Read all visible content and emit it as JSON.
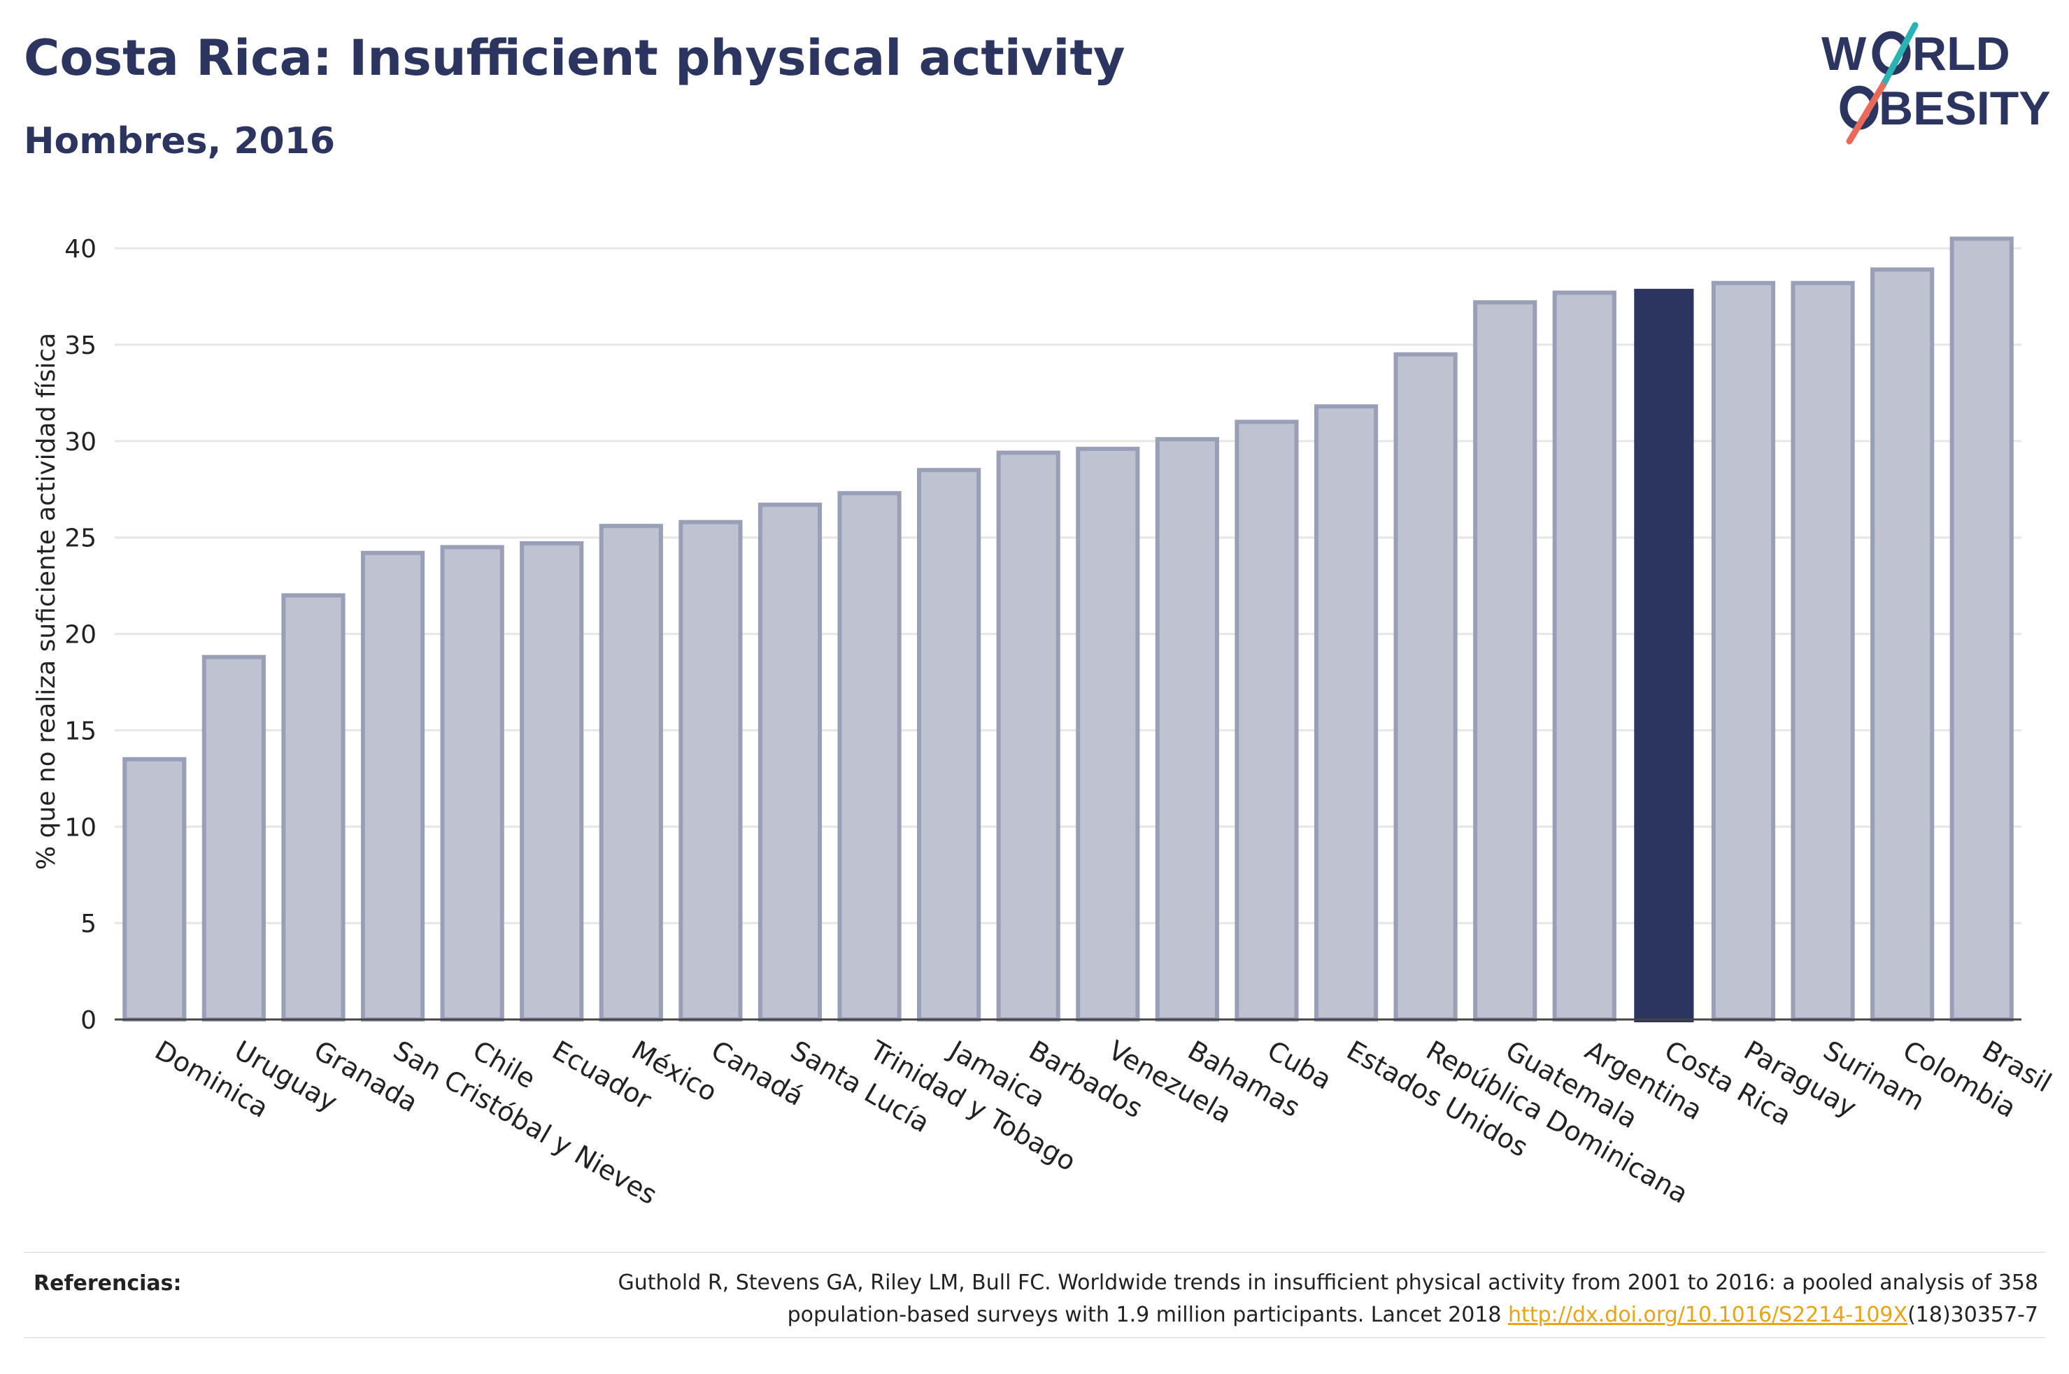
{
  "header": {
    "title": "Costa Rica: Insufficient physical activity",
    "subtitle": "Hombres, 2016"
  },
  "logo": {
    "line1": "W_RLD",
    "line2": "_BESITY",
    "slash_colors": [
      "#2ab3b3",
      "#e96a5a"
    ]
  },
  "chart_data": {
    "type": "bar",
    "title": "",
    "xlabel": "",
    "ylabel": "% que no realiza suficiente actividad física",
    "ylim": [
      0,
      42
    ],
    "yticks": [
      0,
      5,
      10,
      15,
      20,
      25,
      30,
      35,
      40
    ],
    "grid": true,
    "highlight": "Costa Rica",
    "colors": {
      "bar": "#bfc2d0",
      "bar_edge": "#9a9fb8",
      "highlight": "#2b3560",
      "grid": "#e6e6e6"
    },
    "categories": [
      "Dominica",
      "Uruguay",
      "Granada",
      "San Cristóbal y Nieves",
      "Chile",
      "Ecuador",
      "México",
      "Canadá",
      "Santa Lucía",
      "Trinidad y Tobago",
      "Jamaica",
      "Barbados",
      "Venezuela",
      "Bahamas",
      "Cuba",
      "Estados Unidos",
      "República Dominicana",
      "Guatemala",
      "Argentina",
      "Costa Rica",
      "Paraguay",
      "Surinam",
      "Colombia",
      "Brasil"
    ],
    "values": [
      13.5,
      18.8,
      22.0,
      24.2,
      24.5,
      24.7,
      25.6,
      25.8,
      26.7,
      27.3,
      28.5,
      29.4,
      29.6,
      30.1,
      31.0,
      31.8,
      34.5,
      37.2,
      37.7,
      37.9,
      38.2,
      38.2,
      38.9,
      40.5
    ]
  },
  "references": {
    "label": "Referencias:",
    "text_line1": "Guthold R, Stevens GA, Riley LM, Bull FC. Worldwide trends in insufficient physical activity from 2001 to 2016: a pooled analysis of 358",
    "text_line2_prefix": "population-based surveys with 1.9 million participants. Lancet 2018 ",
    "link": "http://dx.doi.org/10.1016/S2214-109X",
    "text_line2_suffix": "(18)30357-7"
  }
}
